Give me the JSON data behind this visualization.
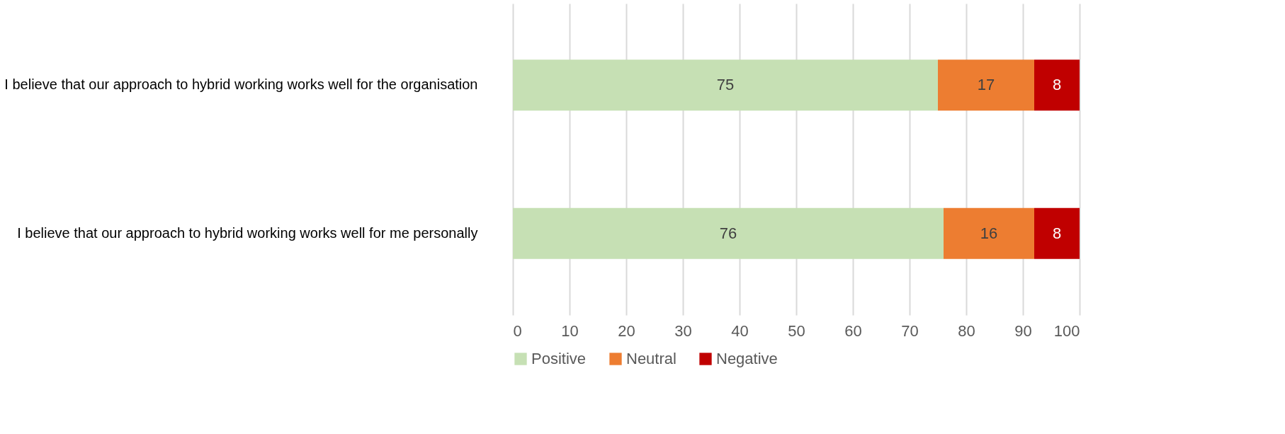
{
  "chart_data": {
    "type": "bar",
    "orientation": "horizontal",
    "stacked": true,
    "categories": [
      "I believe that our approach to hybrid working works well for the organisation",
      "I believe that our approach to hybrid working works well for me personally"
    ],
    "series": [
      {
        "name": "Positive",
        "color": "#c6e0b4",
        "values": [
          75,
          76
        ]
      },
      {
        "name": "Neutral",
        "color": "#ed7d31",
        "values": [
          17,
          16
        ]
      },
      {
        "name": "Negative",
        "color": "#c00000",
        "values": [
          8,
          8
        ]
      }
    ],
    "xlim": [
      0,
      100
    ],
    "xticks": [
      0,
      10,
      20,
      30,
      40,
      50,
      60,
      70,
      80,
      90,
      100
    ],
    "grid": "x",
    "legend": "bottom",
    "data_labels": true
  }
}
